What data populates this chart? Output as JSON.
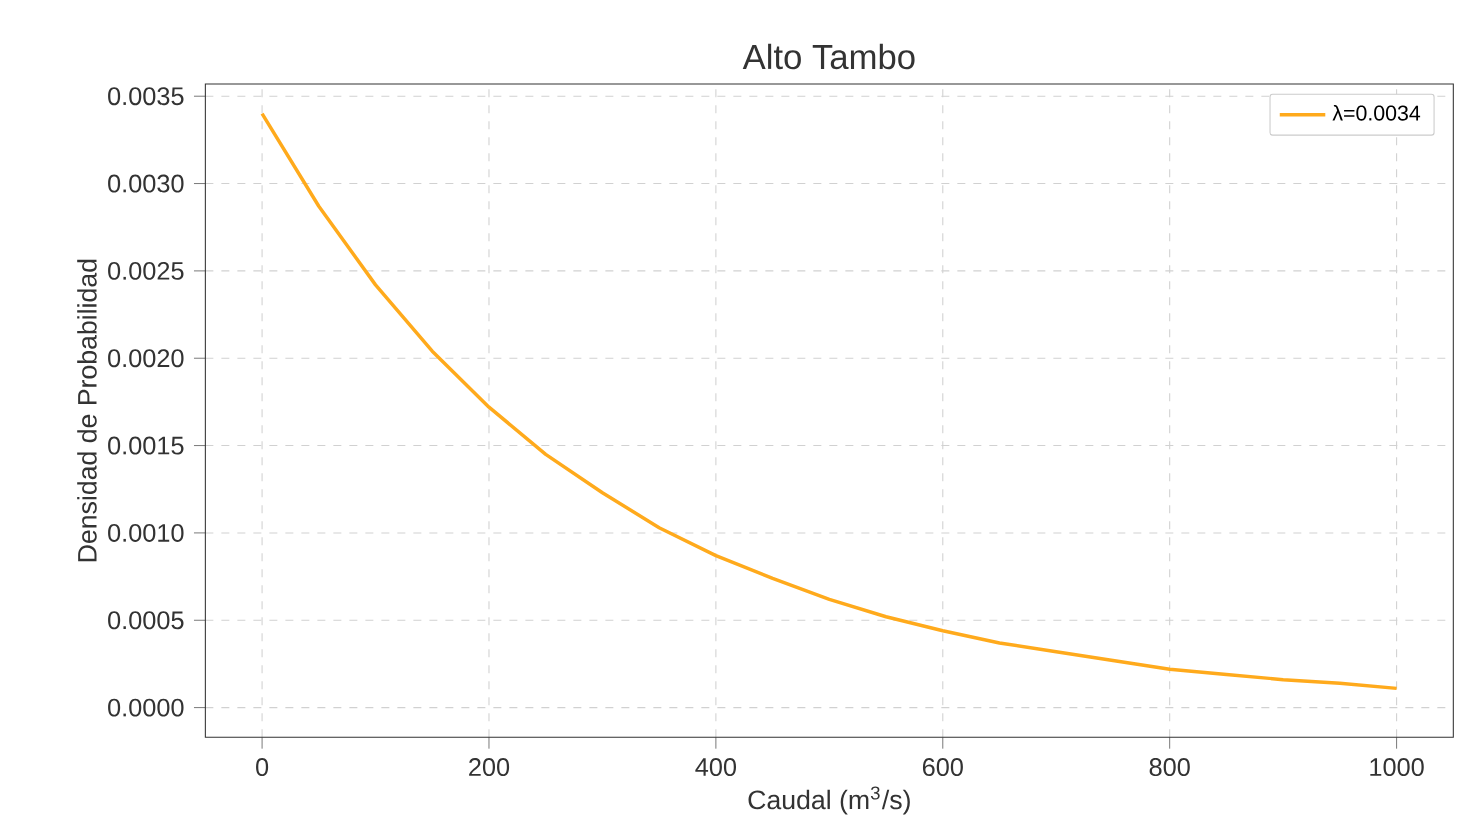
{
  "chart_data": {
    "type": "line",
    "title": "Alto Tambo",
    "xlabel": "Caudal (m$^{3}$/s)",
    "ylabel": "Densidad de Probabilidad",
    "x": [
      0,
      50,
      100,
      150,
      200,
      250,
      300,
      350,
      400,
      450,
      500,
      550,
      600,
      650,
      700,
      750,
      800,
      850,
      900,
      950,
      1000
    ],
    "series": [
      {
        "name": "λ=0.0034",
        "color": "#ffaa1c",
        "values": [
          0.0034,
          0.00287,
          0.00242,
          0.00204,
          0.00172,
          0.00145,
          0.00123,
          0.00103,
          0.00087,
          0.00074,
          0.00062,
          0.00052,
          0.00044,
          0.00037,
          0.00032,
          0.00027,
          0.00022,
          0.00019,
          0.00016,
          0.00014,
          0.00011
        ]
      }
    ],
    "xlim": [
      -50,
      1050
    ],
    "ylim": [
      -0.00017,
      0.00357
    ],
    "xticks": [
      0,
      200,
      400,
      600,
      800,
      1000
    ],
    "yticks": [
      {
        "value": 0,
        "label": "0.0000"
      },
      {
        "value": 0.0005,
        "label": "0.0005"
      },
      {
        "value": 0.001,
        "label": "0.0010"
      },
      {
        "value": 0.0015,
        "label": "0.0015"
      },
      {
        "value": 0.002,
        "label": "0.0020"
      },
      {
        "value": 0.0025,
        "label": "0.0025"
      },
      {
        "value": 0.003,
        "label": "0.0030"
      },
      {
        "value": 0.0035,
        "label": "0.0035"
      }
    ],
    "grid": true,
    "legend": "top right",
    "marker": "none",
    "line_style": "solid"
  }
}
